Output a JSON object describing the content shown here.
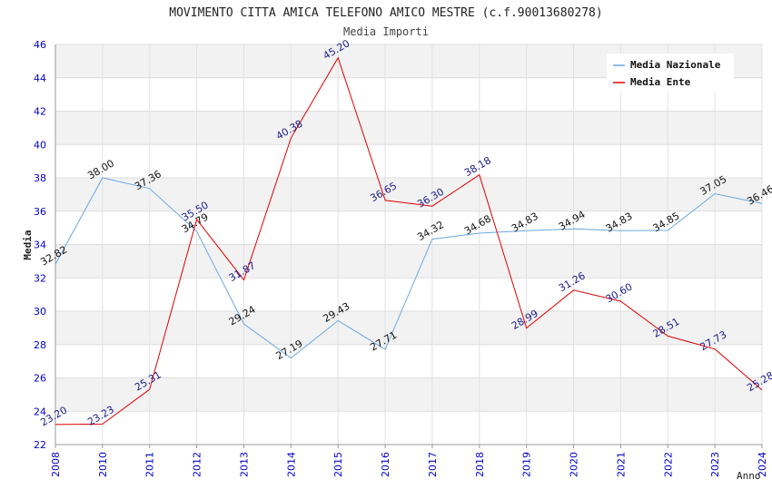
{
  "chart_data": {
    "type": "line",
    "title": "MOVIMENTO CITTA AMICA TELEFONO AMICO MESTRE (c.f.90013680278)",
    "subtitle": "Media Importi",
    "xlabel": "Anno",
    "ylabel": "Media",
    "ylim": [
      22,
      46
    ],
    "ytick_step": 2,
    "grid": true,
    "legend_position": "top-right",
    "x": [
      "2008",
      "2010",
      "2011",
      "2012",
      "2013",
      "2014",
      "2015",
      "2016",
      "2017",
      "2018",
      "2019",
      "2020",
      "2021",
      "2022",
      "2023",
      "2024"
    ],
    "series": [
      {
        "name": "Media Nazionale",
        "color": "#6aa8e0",
        "values": [
          32.82,
          38.0,
          37.36,
          34.79,
          29.24,
          27.19,
          29.43,
          27.71,
          34.32,
          34.68,
          34.83,
          34.94,
          34.83,
          34.85,
          37.05,
          36.46
        ],
        "labels": [
          "32.82",
          "38.00",
          "37.36",
          "34.79",
          "29.24",
          "27.19",
          "29.43",
          "27.71",
          "34.32",
          "34.68",
          "34.83",
          "34.94",
          "34.83",
          "34.85",
          "37.05",
          "36.46"
        ]
      },
      {
        "name": "Media Ente",
        "color": "#e00000",
        "values": [
          23.2,
          23.23,
          25.31,
          35.5,
          31.87,
          40.38,
          45.2,
          36.65,
          36.3,
          38.18,
          28.99,
          31.26,
          30.6,
          28.51,
          27.73,
          25.28
        ],
        "labels": [
          "23.20",
          "23.23",
          "25.31",
          "35.50",
          "31.87",
          "40.38",
          "45.20",
          "36.65",
          "36.30",
          "38.18",
          "28.99",
          "31.26",
          "30.60",
          "28.51",
          "27.73",
          "25.28"
        ]
      }
    ]
  }
}
